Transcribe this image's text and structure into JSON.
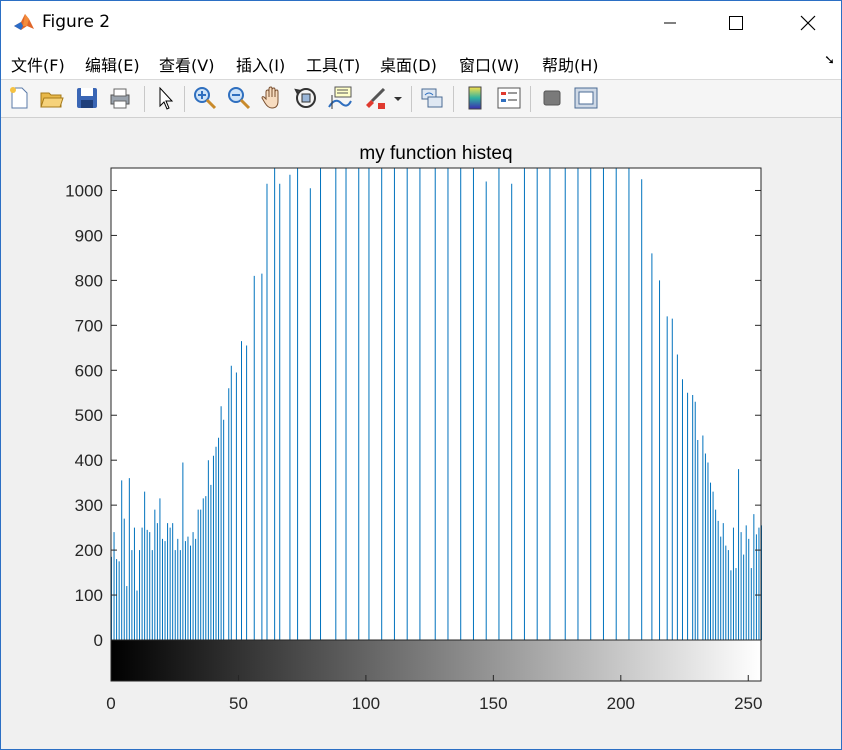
{
  "window": {
    "title": "Figure 2"
  },
  "menu": [
    "文件(F)",
    "编辑(E)",
    "查看(V)",
    "插入(I)",
    "工具(T)",
    "桌面(D)",
    "窗口(W)",
    "帮助(H)"
  ],
  "toolbar": [
    "new-figure-icon",
    "open-file-icon",
    "save-icon",
    "print-icon",
    "pointer-icon",
    "zoom-in-icon",
    "zoom-out-icon",
    "pan-hand-icon",
    "rotate-3d-icon",
    "data-cursor-icon",
    "brush-icon",
    "link-plot-icon",
    "insert-colorbar-icon",
    "insert-legend-icon",
    "hide-plot-tools-icon",
    "show-plot-tools-icon"
  ],
  "chart_data": {
    "type": "bar",
    "title": "my function histeq",
    "xlim": [
      0,
      255
    ],
    "ylim": [
      0,
      1050
    ],
    "yticks": [
      0,
      100,
      200,
      300,
      400,
      500,
      600,
      700,
      800,
      900,
      1000
    ],
    "xticks": [
      0,
      50,
      100,
      150,
      200,
      250
    ],
    "colorbar": "gray",
    "bar_color": "#0072bd",
    "x": [
      0,
      1,
      2,
      3,
      4,
      5,
      6,
      7,
      8,
      9,
      10,
      11,
      12,
      13,
      14,
      15,
      16,
      17,
      18,
      19,
      20,
      21,
      22,
      23,
      24,
      25,
      26,
      27,
      28,
      29,
      30,
      31,
      32,
      33,
      34,
      35,
      36,
      37,
      38,
      39,
      40,
      41,
      42,
      43,
      44,
      46,
      47,
      49,
      51,
      53,
      56,
      59,
      61,
      64,
      66,
      70,
      73,
      78,
      82,
      88,
      92,
      97,
      101,
      106,
      111,
      116,
      121,
      127,
      132,
      137,
      142,
      147,
      152,
      157,
      162,
      167,
      172,
      178,
      183,
      188,
      193,
      198,
      203,
      208,
      212,
      215,
      218,
      220,
      222,
      224,
      226,
      228,
      229,
      230,
      232,
      233,
      234,
      235,
      236,
      237,
      238,
      239,
      240,
      241,
      242,
      243,
      244,
      245,
      246,
      247,
      248,
      249,
      250,
      251,
      252,
      253,
      254,
      255
    ],
    "values": [
      185,
      240,
      180,
      175,
      355,
      270,
      120,
      360,
      200,
      250,
      110,
      200,
      250,
      330,
      245,
      240,
      200,
      290,
      260,
      315,
      225,
      220,
      260,
      250,
      260,
      200,
      225,
      200,
      395,
      220,
      230,
      210,
      240,
      225,
      290,
      290,
      315,
      320,
      400,
      345,
      410,
      430,
      450,
      520,
      490,
      560,
      610,
      595,
      665,
      655,
      810,
      815,
      1015,
      1050,
      1015,
      1035,
      1050,
      1005,
      1050,
      1050,
      1050,
      1050,
      1050,
      1050,
      1050,
      1050,
      1050,
      1050,
      1050,
      1050,
      1050,
      1020,
      1050,
      1015,
      1050,
      1050,
      1050,
      1050,
      1050,
      1050,
      1050,
      1050,
      1050,
      1025,
      860,
      800,
      720,
      715,
      635,
      580,
      550,
      545,
      530,
      445,
      455,
      415,
      395,
      350,
      330,
      290,
      265,
      230,
      260,
      210,
      200,
      155,
      250,
      160,
      380,
      240,
      190,
      255,
      225,
      160,
      280,
      235,
      250,
      255
    ]
  }
}
